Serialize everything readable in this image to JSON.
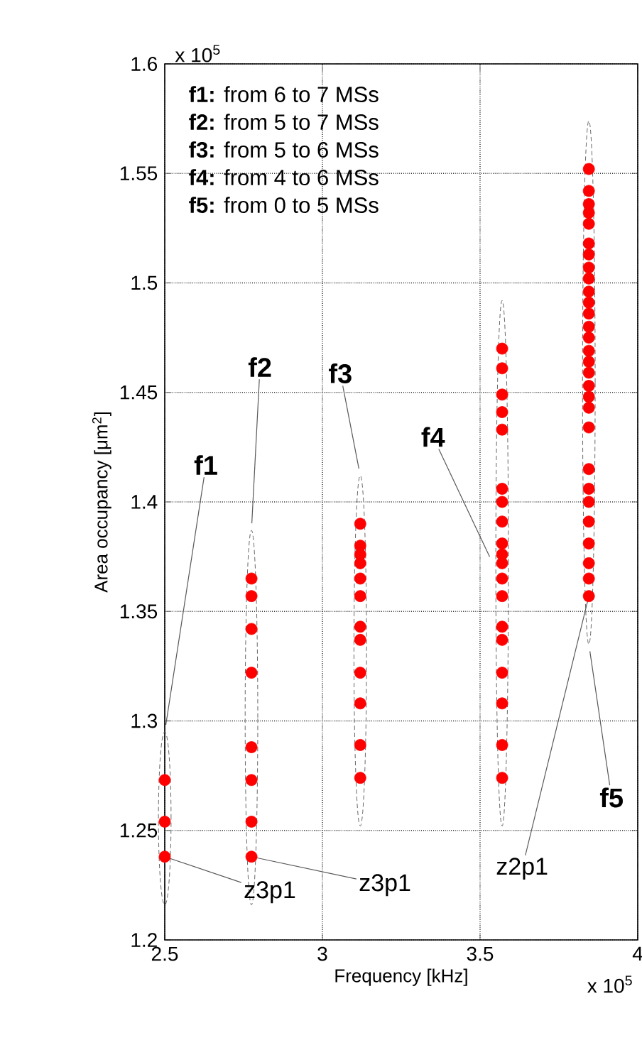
{
  "chart_data": {
    "type": "scatter",
    "xlabel": "Frequency [kHz]",
    "ylabel": "Area occupancy [μm$^{2}$]",
    "xlim": [
      2.5,
      4
    ],
    "xticks": [
      2.5,
      3,
      3.5,
      4
    ],
    "ylim": [
      1.2,
      1.6
    ],
    "yticks": [
      1.2,
      1.25,
      1.3,
      1.35,
      1.4,
      1.45,
      1.5,
      1.55,
      1.6
    ],
    "grid": true,
    "marker": "circle",
    "series": [
      {
        "color": "#ff0000",
        "x": [
          2.5,
          2.5,
          2.5
        ],
        "values": [
          1.273,
          1.254,
          1.238
        ]
      },
      {
        "color": "#ff0000",
        "x": [
          2.775,
          2.775,
          2.775,
          2.775,
          2.775,
          2.775,
          2.775,
          2.775
        ],
        "values": [
          1.365,
          1.357,
          1.342,
          1.322,
          1.288,
          1.273,
          1.254,
          1.238
        ]
      },
      {
        "color": "#ff0000",
        "x": [
          3.12,
          3.12,
          3.12,
          3.12,
          3.12,
          3.12,
          3.12,
          3.12,
          3.12,
          3.12,
          3.12,
          3.12
        ],
        "values": [
          1.39,
          1.38,
          1.376,
          1.372,
          1.365,
          1.357,
          1.343,
          1.337,
          1.322,
          1.308,
          1.289,
          1.274
        ]
      },
      {
        "color": "#ff0000",
        "x": [
          3.57,
          3.57,
          3.57,
          3.57,
          3.57,
          3.57,
          3.57,
          3.57,
          3.57,
          3.57,
          3.57,
          3.57,
          3.57,
          3.57,
          3.57,
          3.57,
          3.57,
          3.57,
          3.57
        ],
        "values": [
          1.47,
          1.461,
          1.449,
          1.441,
          1.433,
          1.406,
          1.4,
          1.391,
          1.381,
          1.376,
          1.372,
          1.365,
          1.357,
          1.343,
          1.337,
          1.322,
          1.308,
          1.289,
          1.274
        ]
      },
      {
        "color": "#ff0000",
        "x": [
          3.845,
          3.845,
          3.845,
          3.845,
          3.845,
          3.845,
          3.845,
          3.845,
          3.845,
          3.845,
          3.845,
          3.845,
          3.845,
          3.845,
          3.845,
          3.845,
          3.845,
          3.845,
          3.845,
          3.845,
          3.845,
          3.845,
          3.845,
          3.845,
          3.845,
          3.845,
          3.845,
          3.845,
          3.845
        ],
        "values": [
          1.552,
          1.542,
          1.536,
          1.532,
          1.527,
          1.518,
          1.513,
          1.507,
          1.502,
          1.496,
          1.491,
          1.486,
          1.48,
          1.475,
          1.469,
          1.464,
          1.459,
          1.453,
          1.448,
          1.443,
          1.434,
          1.415,
          1.406,
          1.4,
          1.391,
          1.381,
          1.372,
          1.365,
          1.357
        ]
      }
    ],
    "annotations": [
      "**f1:** from 6 to 7 MSs",
      "**f2:** from 5 to 7 MSs",
      "**f3:** from 5 to 6 MSs",
      "**f4:** from 4 to 6 MSs",
      "**f5:** from 0 to 5 MSs",
      "x 10$^{5}$",
      "x 10$^{5}$",
      "f1",
      "f2",
      "f3",
      "f4",
      "f5",
      {
        "text": "z3p1",
        "x": 2.5,
        "y": 1.238
      },
      {
        "text": "z3p1",
        "x": 2.775,
        "y": 1.238
      },
      {
        "text": "z2p1",
        "x": 3.845,
        "y": 1.357
      }
    ]
  }
}
